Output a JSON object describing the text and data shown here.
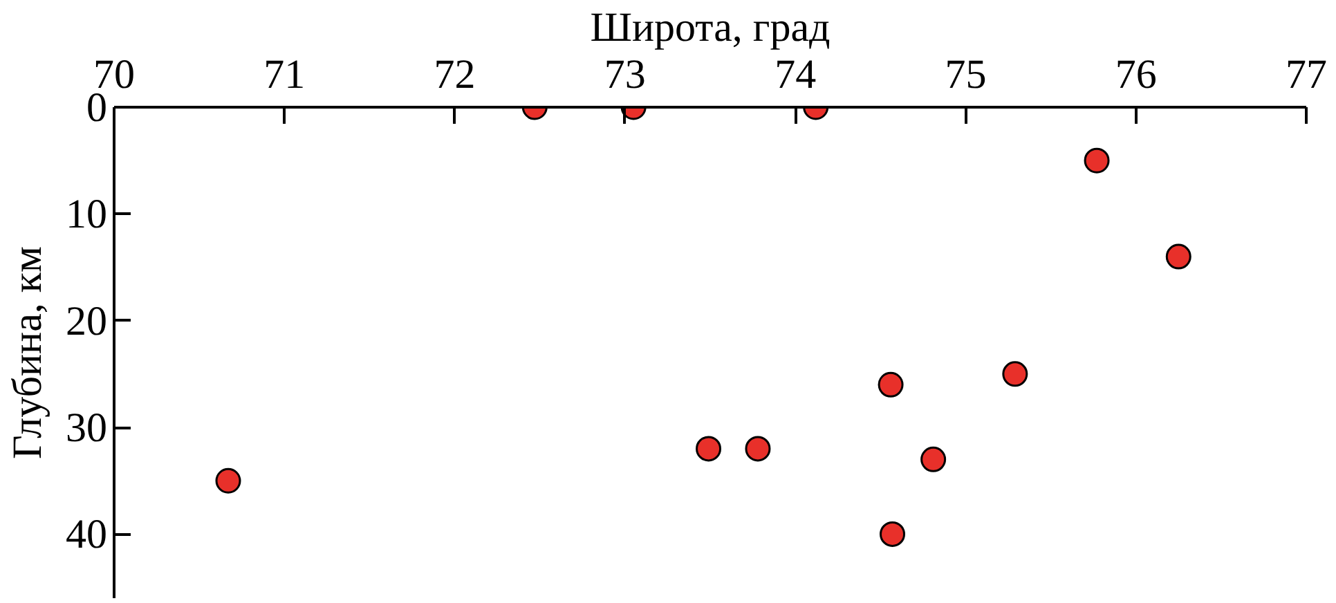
{
  "chart_data": {
    "type": "scatter",
    "xlabel": "Широта, град",
    "ylabel": "Глубина, км",
    "x": [
      70.67,
      72.47,
      73.05,
      74.12,
      75.77,
      76.25,
      73.49,
      73.78,
      74.56,
      75.29,
      74.81,
      74.57
    ],
    "series": [
      {
        "color": "#e8302a",
        "values": [
          35,
          0,
          0,
          0,
          5,
          14,
          32,
          32,
          26,
          25,
          33,
          40
        ]
      }
    ],
    "xlim": [
      70,
      77
    ],
    "xticks": [
      70,
      71,
      72,
      73,
      74,
      75,
      76,
      77
    ],
    "ylim": [
      46,
      0
    ],
    "yticks": [
      0,
      10,
      20,
      30,
      40
    ],
    "marker": "circle",
    "grid": false
  }
}
